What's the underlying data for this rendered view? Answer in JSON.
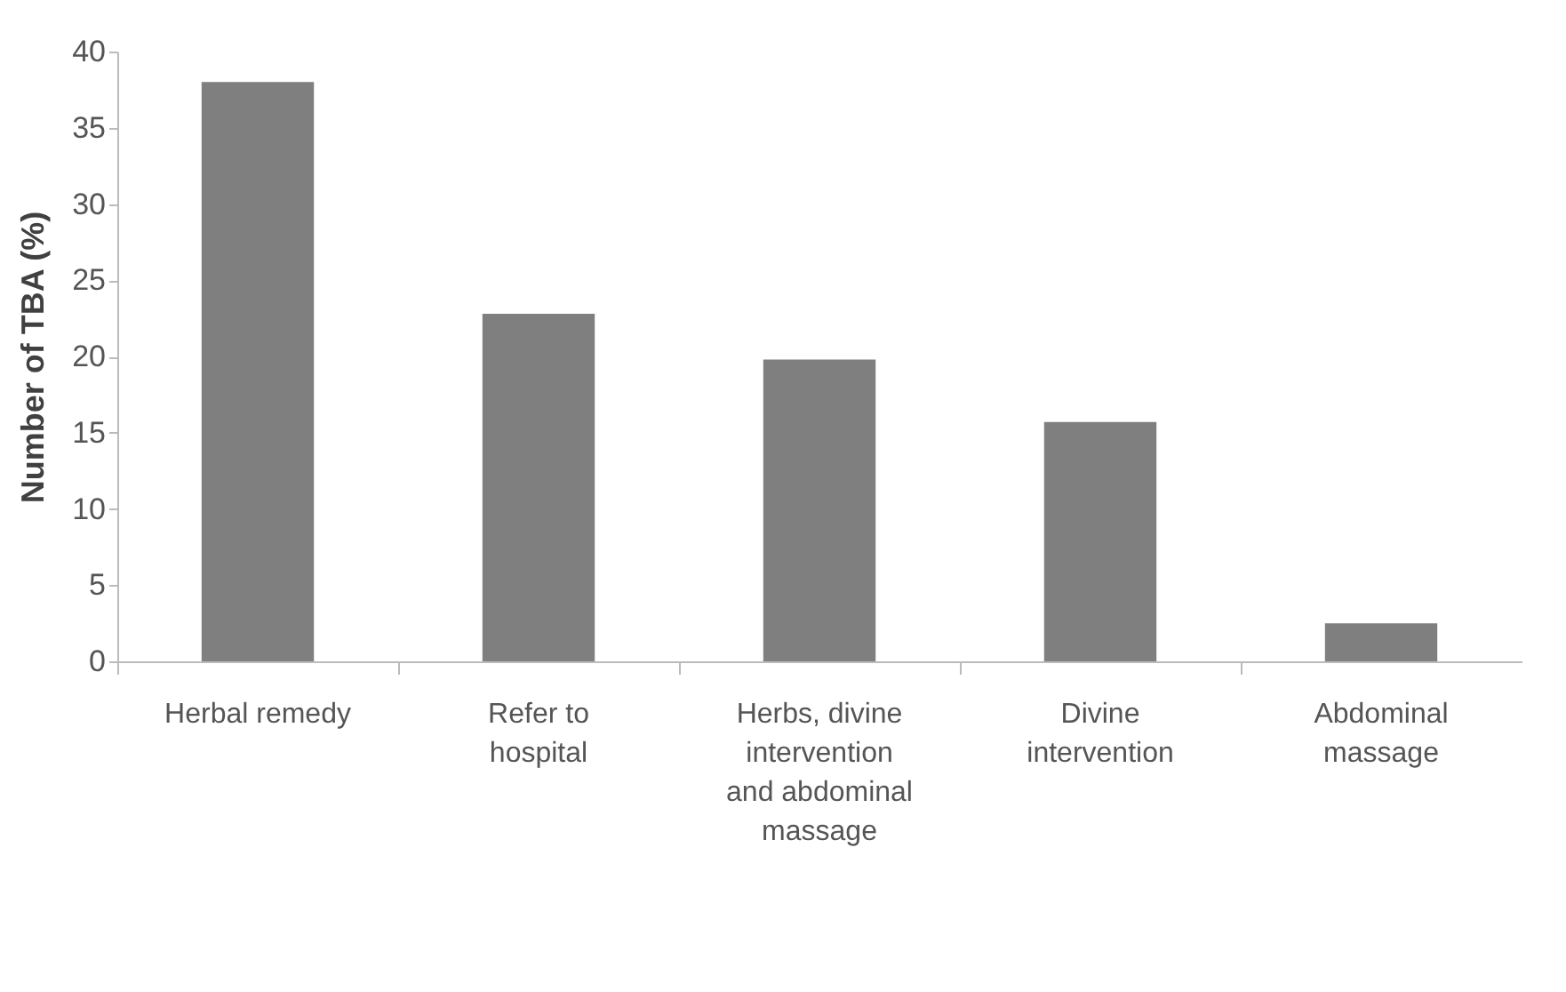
{
  "chart_data": {
    "type": "bar",
    "ylabel": "Number of TBA (%)",
    "categories": [
      "Herbal remedy",
      "Refer to hospital",
      "Herbs, divine intervention and abdominal massage",
      "Divine intervention",
      "Abdominal massage"
    ],
    "values": [
      38,
      22.8,
      19.8,
      15.7,
      2.5
    ],
    "color": "#7f7f7f",
    "ylim": [
      0,
      40
    ],
    "yticks": [
      0,
      5,
      10,
      15,
      20,
      25,
      30,
      35,
      40
    ],
    "grid": false
  }
}
